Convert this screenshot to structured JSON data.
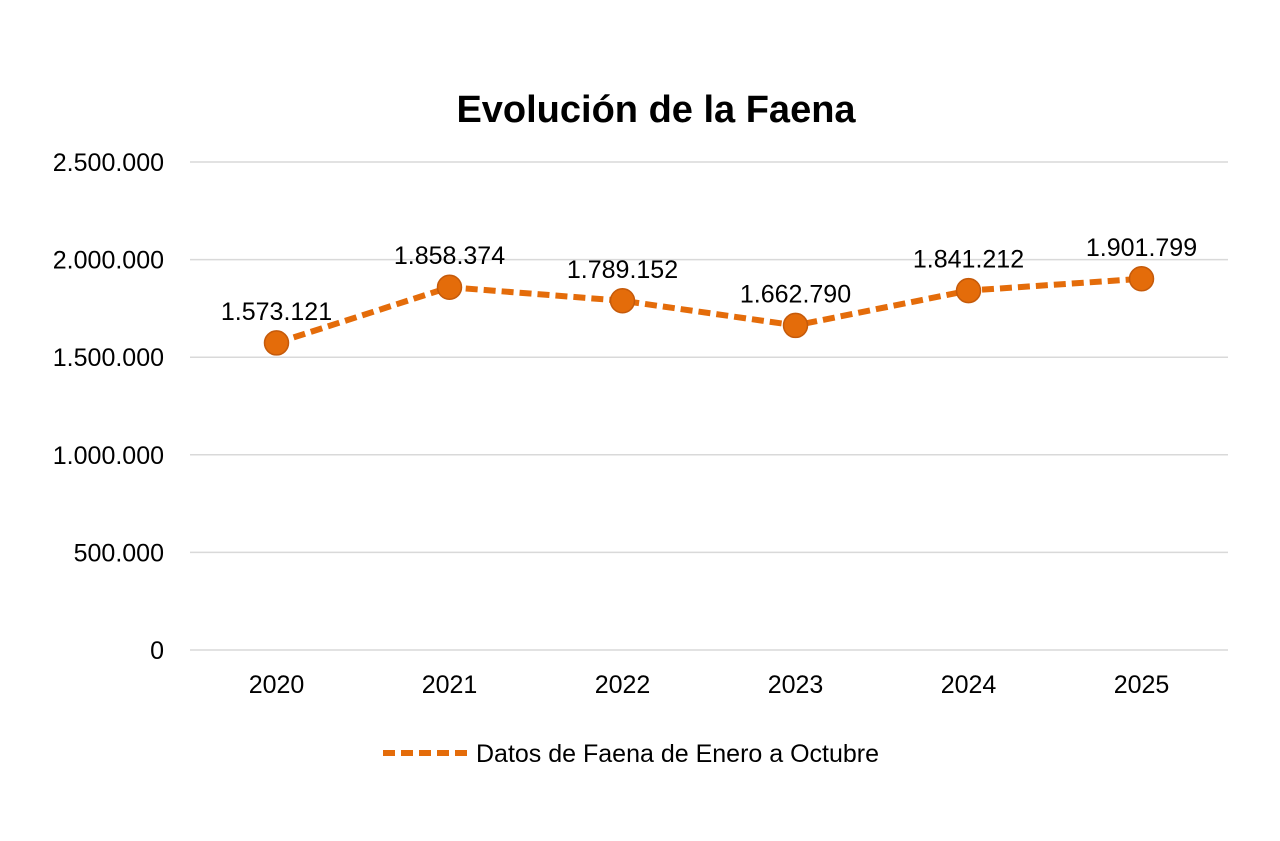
{
  "chart_data": {
    "type": "line",
    "title": "Evolución de la Faena",
    "xlabel": "",
    "ylabel": "",
    "categories": [
      "2020",
      "2021",
      "2022",
      "2023",
      "2024",
      "2025"
    ],
    "series": [
      {
        "name": "Datos de Faena de Enero a Octubre",
        "values": [
          1573121,
          1858374,
          1789152,
          1662790,
          1841212,
          1901799
        ],
        "labels": [
          "1.573.121",
          "1.858.374",
          "1.789.152",
          "1.662.790",
          "1.841.212",
          "1.901.799"
        ],
        "color": "#E46C0A",
        "line_style": "dashed",
        "marker": "circle"
      }
    ],
    "ylim": [
      0,
      2500000
    ],
    "yticks": [
      0,
      500000,
      1000000,
      1500000,
      2000000,
      2500000
    ],
    "ytick_labels": [
      "0",
      "500.000",
      "1.000.000",
      "1.500.000",
      "2.000.000",
      "2.500.000"
    ],
    "grid": true,
    "legend_position": "bottom"
  }
}
